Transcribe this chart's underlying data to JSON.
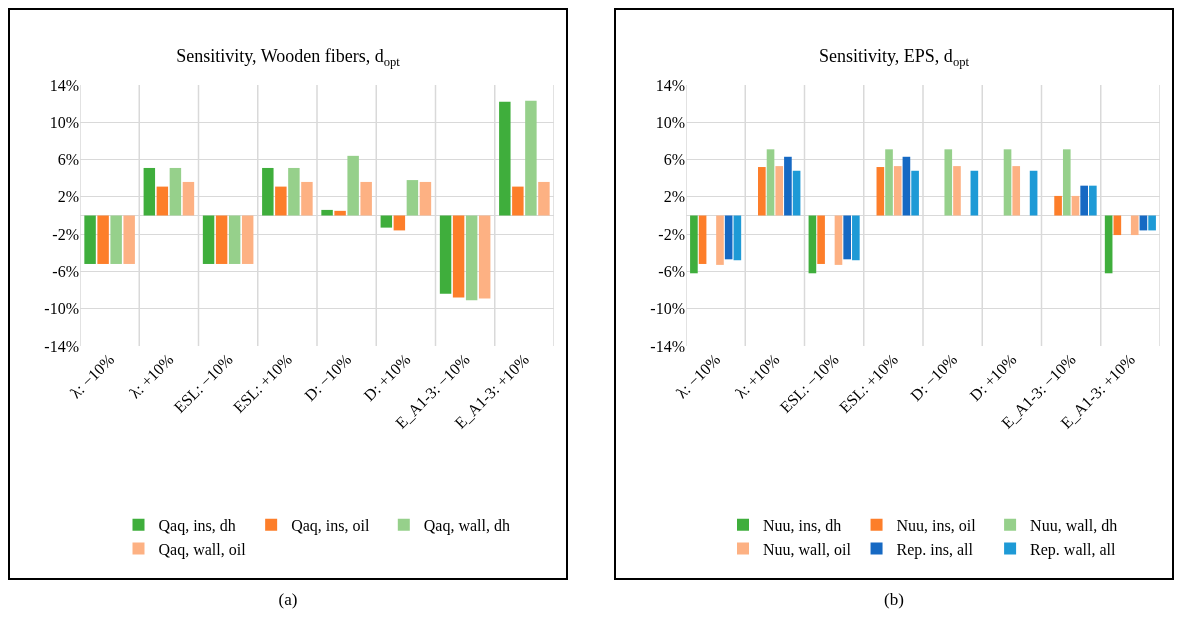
{
  "chart_data": [
    {
      "type": "bar",
      "title": "Sensitivity, Wooden fibers, d$_{opt}$",
      "categories": [
        "λ: −10%",
        "λ: +10%",
        "ESL: −10%",
        "ESL: +10%",
        "D: −10%",
        "D: +10%",
        "E_A1-3: −10%",
        "E_A1-3: +10%"
      ],
      "series": [
        {
          "name": "Qaq, ins, dh",
          "color": "#3fae3c",
          "values": [
            -5.2,
            5.1,
            -5.2,
            5.1,
            0.6,
            -1.3,
            -8.4,
            12.2
          ]
        },
        {
          "name": "Qaq, ins, oil",
          "color": "#fd7e2a",
          "values": [
            -5.2,
            3.1,
            -5.2,
            3.1,
            0.5,
            -1.6,
            -8.8,
            3.1
          ]
        },
        {
          "name": "Qaq, wall, dh",
          "color": "#96d08b",
          "values": [
            -5.2,
            5.1,
            -5.2,
            5.1,
            6.4,
            3.8,
            -9.1,
            12.3
          ]
        },
        {
          "name": "Qaq, wall, oil",
          "color": "#fdb183",
          "values": [
            -5.2,
            3.6,
            -5.2,
            3.6,
            3.6,
            3.6,
            -8.9,
            3.6
          ]
        }
      ],
      "ylim": [
        -14,
        14
      ],
      "yticks": [
        {
          "value": -14,
          "label": "-14%"
        },
        {
          "value": -10,
          "label": "-10%"
        },
        {
          "value": -6,
          "label": "-6%"
        },
        {
          "value": -2,
          "label": "-2%"
        },
        {
          "value": 2,
          "label": "2%"
        },
        {
          "value": 6,
          "label": "6%"
        },
        {
          "value": 10,
          "label": "10%"
        },
        {
          "value": 14,
          "label": "14%"
        }
      ],
      "grid": true,
      "legend": "bottom",
      "annotations": [
        "(a)"
      ]
    },
    {
      "type": "bar",
      "title": "Sensitivity, EPS, d$_{opt}$",
      "categories": [
        "λ: −10%",
        "λ: +10%",
        "ESL: −10%",
        "ESL: +10%",
        "D: −10%",
        "D: +10%",
        "E_A1-3: −10%",
        "E_A1-3: +10%"
      ],
      "series": [
        {
          "name": "Nuu, ins, dh",
          "color": "#3fae3c",
          "values": [
            -6.2,
            0,
            -6.2,
            0,
            0,
            0,
            0,
            -6.2
          ]
        },
        {
          "name": "Nuu, ins, oil",
          "color": "#fd7e2a",
          "values": [
            -5.2,
            5.2,
            -5.2,
            5.2,
            0,
            0,
            2.1,
            -2.1
          ]
        },
        {
          "name": "Nuu, wall, dh",
          "color": "#96d08b",
          "values": [
            0,
            7.1,
            0,
            7.1,
            7.1,
            7.1,
            7.1,
            0
          ]
        },
        {
          "name": "Nuu, wall, oil",
          "color": "#fdb183",
          "values": [
            -5.3,
            5.3,
            -5.3,
            5.3,
            5.3,
            5.3,
            2.1,
            -2.1
          ]
        },
        {
          "name": "Rep. ins, all",
          "color": "#1669c3",
          "values": [
            -4.7,
            6.3,
            -4.7,
            6.3,
            0,
            0,
            3.2,
            -1.6
          ]
        },
        {
          "name": "Rep. wall, all",
          "color": "#1e9ad6",
          "values": [
            -4.8,
            4.8,
            -4.8,
            4.8,
            4.8,
            4.8,
            3.2,
            -1.6
          ]
        }
      ],
      "ylim": [
        -14,
        14
      ],
      "yticks": [
        {
          "value": -14,
          "label": "-14%"
        },
        {
          "value": -10,
          "label": "-10%"
        },
        {
          "value": -6,
          "label": "-6%"
        },
        {
          "value": -2,
          "label": "-2%"
        },
        {
          "value": 2,
          "label": "2%"
        },
        {
          "value": 6,
          "label": "6%"
        },
        {
          "value": 10,
          "label": "10%"
        },
        {
          "value": 14,
          "label": "14%"
        }
      ],
      "grid": true,
      "legend": "bottom",
      "annotations": [
        "(b)"
      ]
    }
  ]
}
